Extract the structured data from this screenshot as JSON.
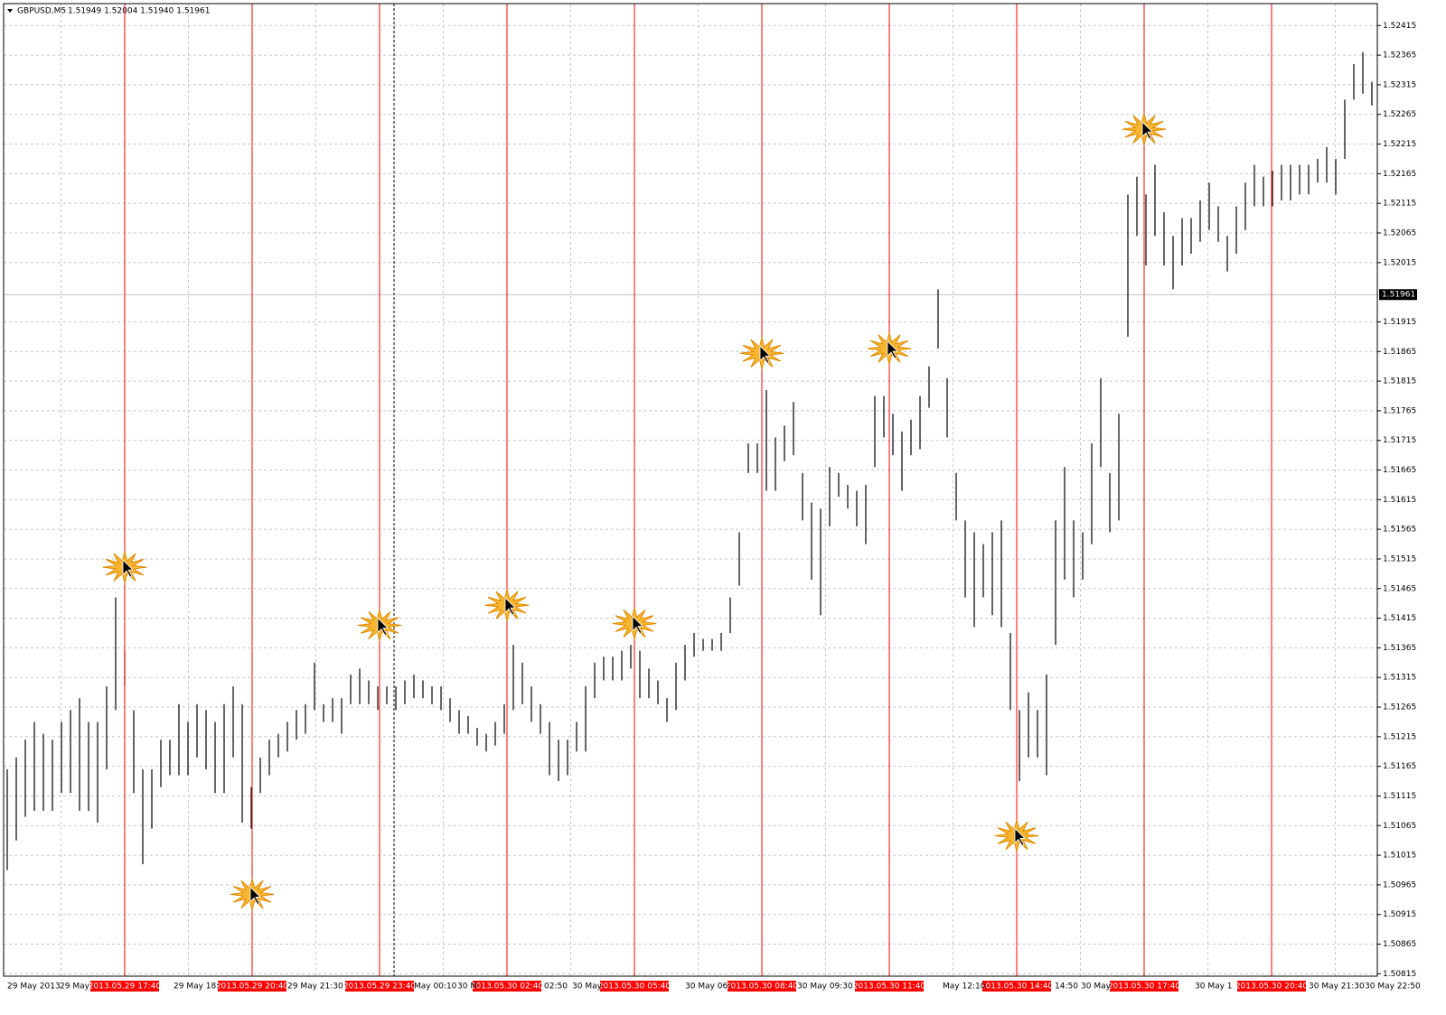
{
  "chart_data": {
    "type": "ohlc",
    "title": "GBPUSD,M5",
    "quote": "1.51949 1.52004 1.51940 1.51961",
    "current_price": 1.51961,
    "ylim": [
      1.50811,
      1.52452
    ],
    "yticks": [
      1.52415,
      1.52365,
      1.52315,
      1.52265,
      1.52215,
      1.52165,
      1.52115,
      1.52065,
      1.52015,
      1.51915,
      1.51865,
      1.51815,
      1.51765,
      1.51715,
      1.51665,
      1.51615,
      1.51565,
      1.51515,
      1.51465,
      1.51415,
      1.51365,
      1.51315,
      1.51265,
      1.51215,
      1.51165,
      1.51115,
      1.51065,
      1.51015,
      1.50965,
      1.50915,
      1.50865,
      1.50815
    ],
    "time_labels": [
      "29 May 2013",
      "29 May",
      "29 May 18:",
      "29 May 21:30",
      "May 00:10",
      "30 M",
      "02:50",
      "30 May",
      "30 May 06:",
      "30 May 09:30",
      "May 12:10",
      "14:50",
      "30 May",
      "30 May 1",
      "30 May 21:30",
      "30 May 22:50"
    ],
    "high": [
      1.5116,
      1.5118,
      1.5121,
      1.5124,
      1.5122,
      1.5121,
      1.5124,
      1.5126,
      1.5128,
      1.5124,
      1.5124,
      1.513,
      1.5145,
      1.5136,
      1.5126,
      1.5116,
      1.5116,
      1.5121,
      1.5121,
      1.5127,
      1.5124,
      1.5127,
      1.5126,
      1.5124,
      1.5127,
      1.513,
      1.5127,
      1.5113,
      1.5118,
      1.5121,
      1.5122,
      1.5124,
      1.5126,
      1.5127,
      1.5134,
      1.5127,
      1.5128,
      1.5128,
      1.5132,
      1.5133,
      1.5131,
      1.513,
      1.513,
      1.513,
      1.5131,
      1.5132,
      1.5131,
      1.513,
      1.513,
      1.5128,
      1.5126,
      1.5125,
      1.5123,
      1.5122,
      1.5124,
      1.5127,
      1.5137,
      1.5134,
      1.513,
      1.5127,
      1.5124,
      1.5121,
      1.5121,
      1.5124,
      1.513,
      1.5134,
      1.5135,
      1.5135,
      1.5136,
      1.5137,
      1.5136,
      1.5133,
      1.5131,
      1.5128,
      1.5134,
      1.5137,
      1.5139,
      1.5138,
      1.5138,
      1.5139,
      1.5145,
      1.5156,
      1.5171,
      1.5171,
      1.518,
      1.5172,
      1.5174,
      1.5178,
      1.5166,
      1.5161,
      1.516,
      1.5167,
      1.5166,
      1.5164,
      1.5163,
      1.5164,
      1.5179,
      1.5179,
      1.5176,
      1.5173,
      1.5175,
      1.5179,
      1.5184,
      1.5197,
      1.5182,
      1.5166,
      1.5158,
      1.5156,
      1.5154,
      1.5156,
      1.5158,
      1.5139,
      1.5126,
      1.5129,
      1.5126,
      1.5132,
      1.5158,
      1.5167,
      1.5158,
      1.5156,
      1.5171,
      1.5182,
      1.5166,
      1.5176,
      1.5213,
      1.5216,
      1.5213,
      1.5218,
      1.521,
      1.5206,
      1.5209,
      1.5209,
      1.5212,
      1.5215,
      1.5211,
      1.5206,
      1.5211,
      1.5215,
      1.5218,
      1.5216,
      1.5217,
      1.5218,
      1.5218,
      1.5218,
      1.5218,
      1.5219,
      1.5221,
      1.5219,
      1.5229,
      1.5235,
      1.5237,
      1.5232
    ],
    "low": [
      1.5099,
      1.5104,
      1.5108,
      1.5109,
      1.5109,
      1.5109,
      1.5112,
      1.5112,
      1.5109,
      1.5109,
      1.5107,
      1.5116,
      1.5126,
      1.513,
      1.5112,
      1.51,
      1.5106,
      1.5113,
      1.5115,
      1.5115,
      1.5115,
      1.5118,
      1.5116,
      1.5112,
      1.5112,
      1.5118,
      1.5107,
      1.5106,
      1.5112,
      1.5115,
      1.5118,
      1.5119,
      1.5121,
      1.5122,
      1.5126,
      1.5124,
      1.5124,
      1.5122,
      1.5127,
      1.5127,
      1.5127,
      1.5126,
      1.5127,
      1.5126,
      1.5127,
      1.5128,
      1.5128,
      1.5127,
      1.5126,
      1.5124,
      1.5122,
      1.5122,
      1.512,
      1.5119,
      1.512,
      1.5122,
      1.5126,
      1.5127,
      1.5124,
      1.5122,
      1.5115,
      1.5114,
      1.5115,
      1.5119,
      1.5119,
      1.5128,
      1.5131,
      1.5131,
      1.5131,
      1.5133,
      1.5128,
      1.5128,
      1.5127,
      1.5124,
      1.5126,
      1.5131,
      1.5135,
      1.5136,
      1.5136,
      1.5136,
      1.5139,
      1.5147,
      1.5166,
      1.5166,
      1.5163,
      1.5163,
      1.5168,
      1.5169,
      1.5158,
      1.5148,
      1.5142,
      1.5157,
      1.5162,
      1.516,
      1.5157,
      1.5154,
      1.5167,
      1.5172,
      1.5169,
      1.5163,
      1.5169,
      1.517,
      1.5177,
      1.5187,
      1.5172,
      1.5158,
      1.5145,
      1.514,
      1.5145,
      1.5142,
      1.514,
      1.5126,
      1.5114,
      1.5118,
      1.5118,
      1.5115,
      1.5137,
      1.5148,
      1.5145,
      1.5148,
      1.5154,
      1.5167,
      1.5156,
      1.5158,
      1.5189,
      1.5206,
      1.5201,
      1.5206,
      1.5201,
      1.5197,
      1.5201,
      1.5203,
      1.5205,
      1.5207,
      1.5205,
      1.52,
      1.5203,
      1.5207,
      1.5211,
      1.5211,
      1.5211,
      1.5212,
      1.5212,
      1.5213,
      1.5213,
      1.5215,
      1.5215,
      1.5213,
      1.5219,
      1.5229,
      1.523,
      1.5228
    ],
    "events": [
      {
        "time": "2013.05.29 17:40",
        "marker": 1.51501
      },
      {
        "time": "2013.05.29 20:40",
        "marker": 1.50949
      },
      {
        "time": "2013.05.29 23:40",
        "marker": 1.51403
      },
      {
        "time": "2013.05.30 02:40",
        "marker": 1.51437
      },
      {
        "time": "2013.05.30 05:40",
        "marker": 1.51406
      },
      {
        "time": "2013.05.30 08:40",
        "marker": 1.51862
      },
      {
        "time": "2013.05.30 11:40",
        "marker": 1.5187
      },
      {
        "time": "2013.05.30 14:40",
        "marker": 1.51048
      },
      {
        "time": "2013.05.30 17:40",
        "marker": 1.5224
      },
      {
        "time": "2013.05.30 20:40",
        "marker": null
      }
    ],
    "event_color": "#ff0000",
    "bar_color": "#000000",
    "grid": true
  }
}
